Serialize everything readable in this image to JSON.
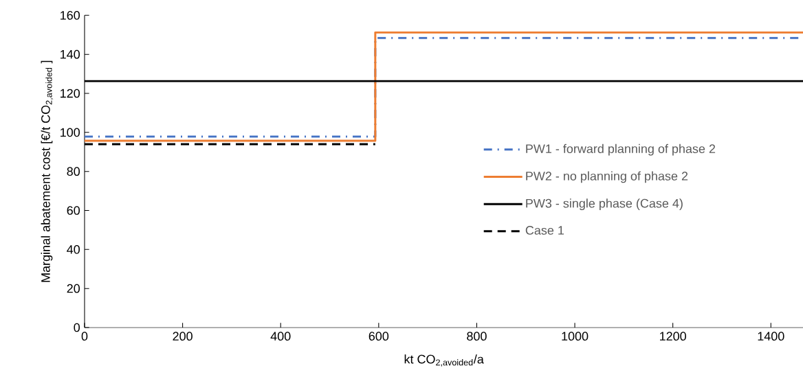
{
  "chart_data": {
    "type": "step",
    "xlabel": "kt CO$_{2,avoided}$/a",
    "ylabel": "Marginal abatement cost [€/t CO$_{2,avoided}$ ]",
    "xlim": [
      0,
      1466
    ],
    "xticks": [
      0,
      200,
      400,
      600,
      800,
      1000,
      1200,
      1400
    ],
    "ylim": [
      0,
      160
    ],
    "yticks": [
      0,
      20,
      40,
      60,
      80,
      100,
      120,
      140,
      160
    ],
    "legend": "right",
    "series": [
      {
        "name": "PW1 - forward planning of phase 2",
        "color": "#4472c4",
        "line_style": "dashdot",
        "x": [
          0,
          593,
          1466
        ],
        "values": [
          97.8,
          148.4,
          148.4
        ]
      },
      {
        "name": "PW2 - no planning of phase 2",
        "color": "#ed7d31",
        "line_style": "solid",
        "x": [
          0,
          593,
          1466
        ],
        "values": [
          95.7,
          151.2,
          151.2
        ]
      },
      {
        "name": "PW3 - single phase (Case 4)",
        "color": "#000000",
        "line_style": "solid",
        "x": [
          0,
          1466
        ],
        "values": [
          126.3,
          126.3
        ]
      },
      {
        "name": "Case 1",
        "color": "#000000",
        "line_style": "dashed",
        "x": [
          0,
          593
        ],
        "values": [
          94.0,
          94.0
        ]
      }
    ]
  }
}
